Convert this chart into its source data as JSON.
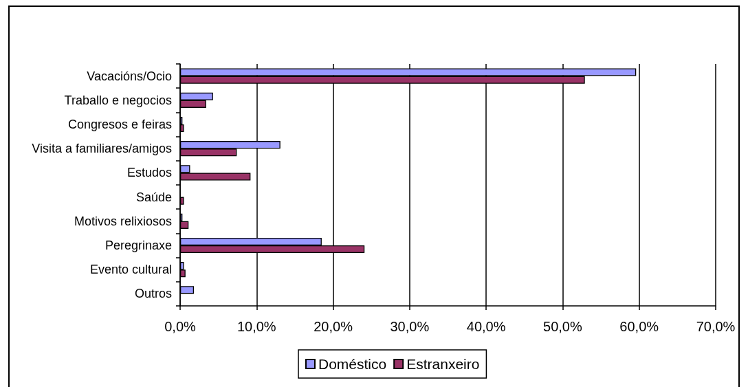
{
  "chart_data": {
    "type": "bar",
    "orientation": "horizontal",
    "categories": [
      "Vacacións/Ocio",
      "Traballo e negocios",
      "Congresos e feiras",
      "Visita a familiares/amigos",
      "Estudos",
      "Saúde",
      "Motivos relixiosos",
      "Peregrinaxe",
      "Evento cultural",
      "Outros"
    ],
    "series": [
      {
        "name": "Doméstico",
        "color": "#9999ff",
        "values": [
          59.6,
          4.3,
          0.3,
          13.1,
          1.3,
          null,
          0.3,
          18.5,
          0.5,
          1.8
        ]
      },
      {
        "name": "Estranxeiro",
        "color": "#993366",
        "values": [
          52.9,
          3.4,
          0.5,
          7.4,
          9.2,
          0.5,
          1.1,
          24.1,
          0.7,
          null
        ]
      }
    ],
    "xlim": [
      0,
      70
    ],
    "xticks": [
      {
        "value": 0,
        "label": "0,0%"
      },
      {
        "value": 10,
        "label": "10,0%"
      },
      {
        "value": 20,
        "label": "20,0%"
      },
      {
        "value": 30,
        "label": "30,0%"
      },
      {
        "value": 40,
        "label": "40,0%"
      },
      {
        "value": 50,
        "label": "50,0%"
      },
      {
        "value": 60,
        "label": "60,0%"
      },
      {
        "value": 70,
        "label": "70,0%"
      }
    ],
    "grid": "x",
    "legend": "bottom"
  }
}
